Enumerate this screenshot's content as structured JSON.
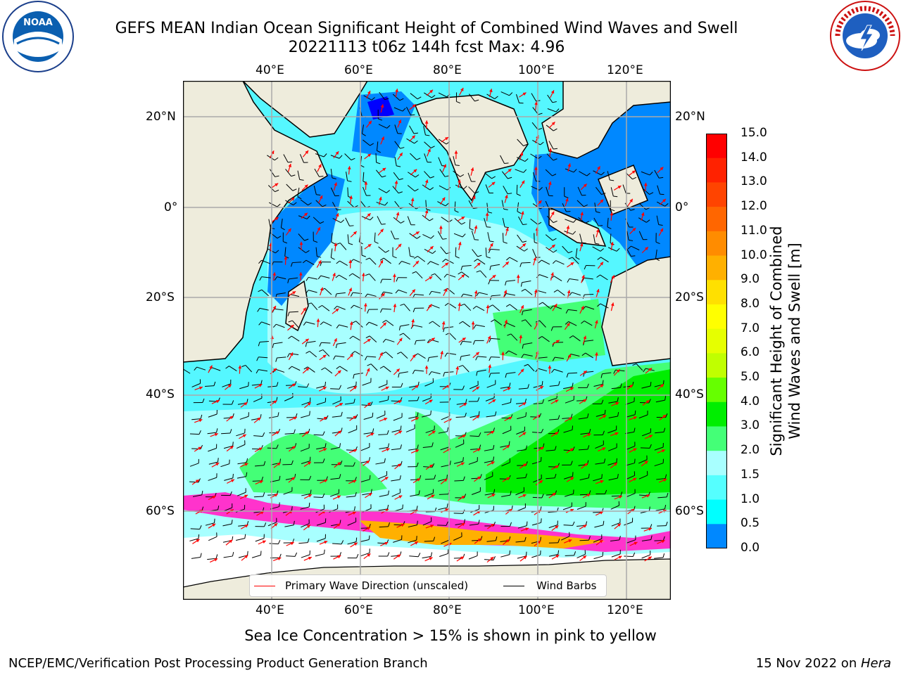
{
  "header": {
    "title_line1": "GEFS MEAN Indian Ocean Significant Height of Combined Wind Waves and Swell",
    "title_line2": "20221113 t06z 144h fcst   Max: 4.96"
  },
  "logos": {
    "left": {
      "text": "NOAA",
      "ring_text": "NATIONAL OCEANIC AND ATMOSPHERIC ADMINISTRATION · U.S. DEPARTMENT OF COMMERCE"
    },
    "right": {
      "ring_text": "NATIONAL WEATHER SERVICE"
    }
  },
  "map": {
    "lon_labels": [
      "40°E",
      "60°E",
      "80°E",
      "100°E",
      "120°E"
    ],
    "lat_labels": [
      "20°N",
      "0°",
      "20°S",
      "40°S",
      "60°S"
    ],
    "extent": {
      "lon": [
        20,
        130
      ],
      "lat": [
        -70,
        27
      ]
    },
    "colors": {
      "land": "#eeecdc",
      "ocean_low": "#55f7ff",
      "ocean_mid": "#a8ffff",
      "coast": "#000000"
    }
  },
  "legend": {
    "primary_wave": "Primary Wave Direction (unscaled)",
    "wind_barbs": "Wind Barbs",
    "wave_color": "#ff0000",
    "barb_color": "#000000"
  },
  "colorbar": {
    "label_line1": "Significant Height of Combined",
    "label_line2": "Wind Waves and Swell [m]",
    "ticks": [
      "15.0",
      "14.0",
      "13.0",
      "12.0",
      "11.0",
      "10.0",
      "9.0",
      "8.0",
      "7.0",
      "6.0",
      "5.0",
      "4.0",
      "3.0",
      "2.0",
      "1.5",
      "1.0",
      "0.5",
      "0.0"
    ],
    "colors": [
      "#ff0000",
      "#ff2200",
      "#ff4400",
      "#ff6600",
      "#ff8c00",
      "#ffb000",
      "#ffe000",
      "#ffff00",
      "#e6ff00",
      "#c0ff00",
      "#66ff00",
      "#00ee00",
      "#44ff77",
      "#a8ffff",
      "#55ffff",
      "#00ffff",
      "#0088ff",
      "#0000ff"
    ]
  },
  "notes": {
    "sea_ice": "Sea Ice Concentration > 15% is shown in pink to yellow"
  },
  "footer": {
    "left": "NCEP/EMC/Verification Post Processing Product Generation Branch",
    "right_date": "15 Nov 2022 on ",
    "right_host": "Hera"
  }
}
